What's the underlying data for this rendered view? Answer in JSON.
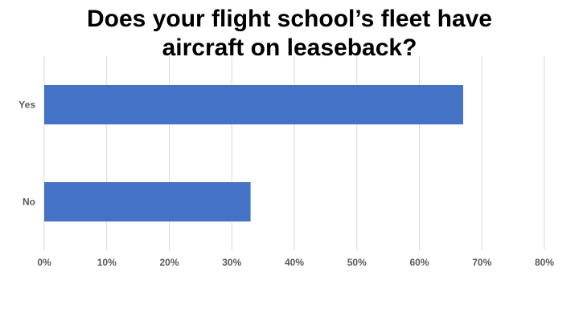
{
  "chart_data": {
    "type": "bar",
    "orientation": "horizontal",
    "title_lines": [
      "Does your flight school’s fleet have",
      "aircraft on leaseback?"
    ],
    "categories": [
      "Yes",
      "No"
    ],
    "values": [
      67,
      33
    ],
    "unit": "%",
    "xlim": [
      0,
      80
    ],
    "xticks": [
      0,
      10,
      20,
      30,
      40,
      50,
      60,
      70,
      80
    ],
    "xtick_labels": [
      "0%",
      "10%",
      "20%",
      "30%",
      "40%",
      "50%",
      "60%",
      "70%",
      "80%"
    ],
    "grid": "vertical",
    "legend": "none",
    "bar_color": "#4472C4",
    "grid_color": "#D9D9D9",
    "text_color": "#595959"
  }
}
